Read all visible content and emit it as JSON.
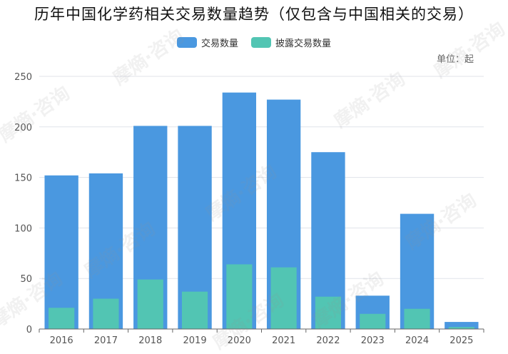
{
  "title": "历年中国化学药相关交易数量趋势（仅包含与中国相关的交易）",
  "unit_label": "单位：起",
  "watermark_text": "摩熵·咨询",
  "colors": {
    "series1": "#4a98e0",
    "series2": "#52c5b3",
    "grid": "#e0e3ea",
    "axis": "#666666"
  },
  "chart_data": {
    "type": "bar",
    "categories": [
      "2016",
      "2017",
      "2018",
      "2019",
      "2020",
      "2021",
      "2022",
      "2023",
      "2024",
      "2025"
    ],
    "series": [
      {
        "name": "交易数量",
        "values": [
          152,
          154,
          201,
          201,
          234,
          227,
          175,
          33,
          114,
          7
        ]
      },
      {
        "name": "披露交易数量",
        "values": [
          21,
          30,
          49,
          37,
          64,
          61,
          32,
          15,
          20,
          2
        ]
      }
    ],
    "y_ticks": [
      "0",
      "50",
      "100",
      "150",
      "200",
      "250"
    ],
    "ylim": [
      0,
      250
    ],
    "grid": true,
    "legend_position": "top-center"
  }
}
